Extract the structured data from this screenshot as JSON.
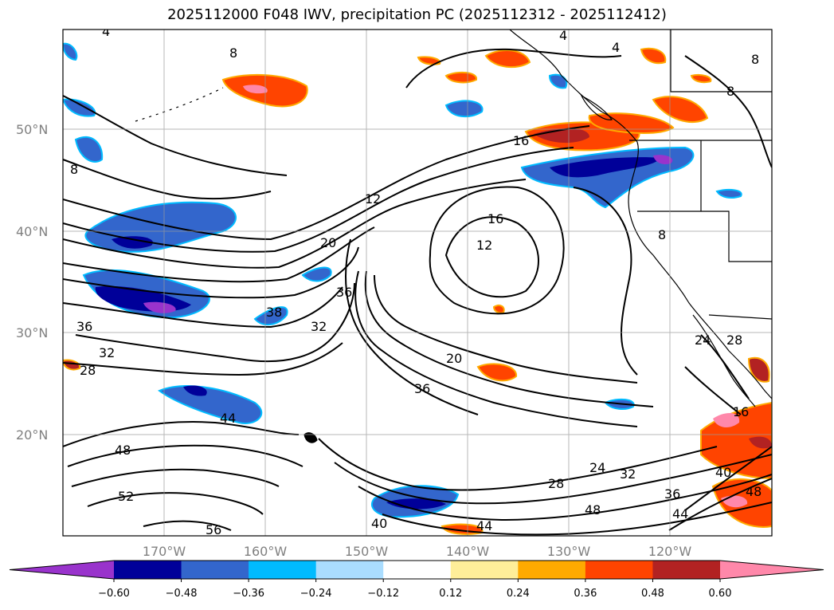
{
  "title": "2025112000 F048 IWV, precipitation PC (2025112312 - 2025112412)",
  "map": {
    "lat_labels": [
      "50°N",
      "40°N",
      "30°N",
      "20°N"
    ],
    "lon_labels": [
      "170°W",
      "160°W",
      "150°W",
      "140°W",
      "130°W",
      "120°W"
    ],
    "contour_labels": [
      "4",
      "4",
      "8",
      "4",
      "8",
      "8",
      "8",
      "8",
      "16",
      "12",
      "16",
      "12",
      "20",
      "36",
      "38",
      "32",
      "36",
      "32",
      "28",
      "20",
      "36",
      "44",
      "48",
      "52",
      "56",
      "40",
      "44",
      "24",
      "28",
      "32",
      "48",
      "24",
      "28",
      "16",
      "40",
      "48",
      "36",
      "44"
    ]
  },
  "colorbar": {
    "colors": [
      "#9933cc",
      "#000099",
      "#3366cc",
      "#00bbff",
      "#aaddff",
      "#ffffff",
      "#ffee99",
      "#ffaa00",
      "#ff4400",
      "#b22222",
      "#ff88aa"
    ],
    "tick_labels": [
      "−0.60",
      "−0.48",
      "−0.36",
      "−0.24",
      "−0.12",
      "0.12",
      "0.24",
      "0.36",
      "0.48",
      "0.60"
    ]
  }
}
